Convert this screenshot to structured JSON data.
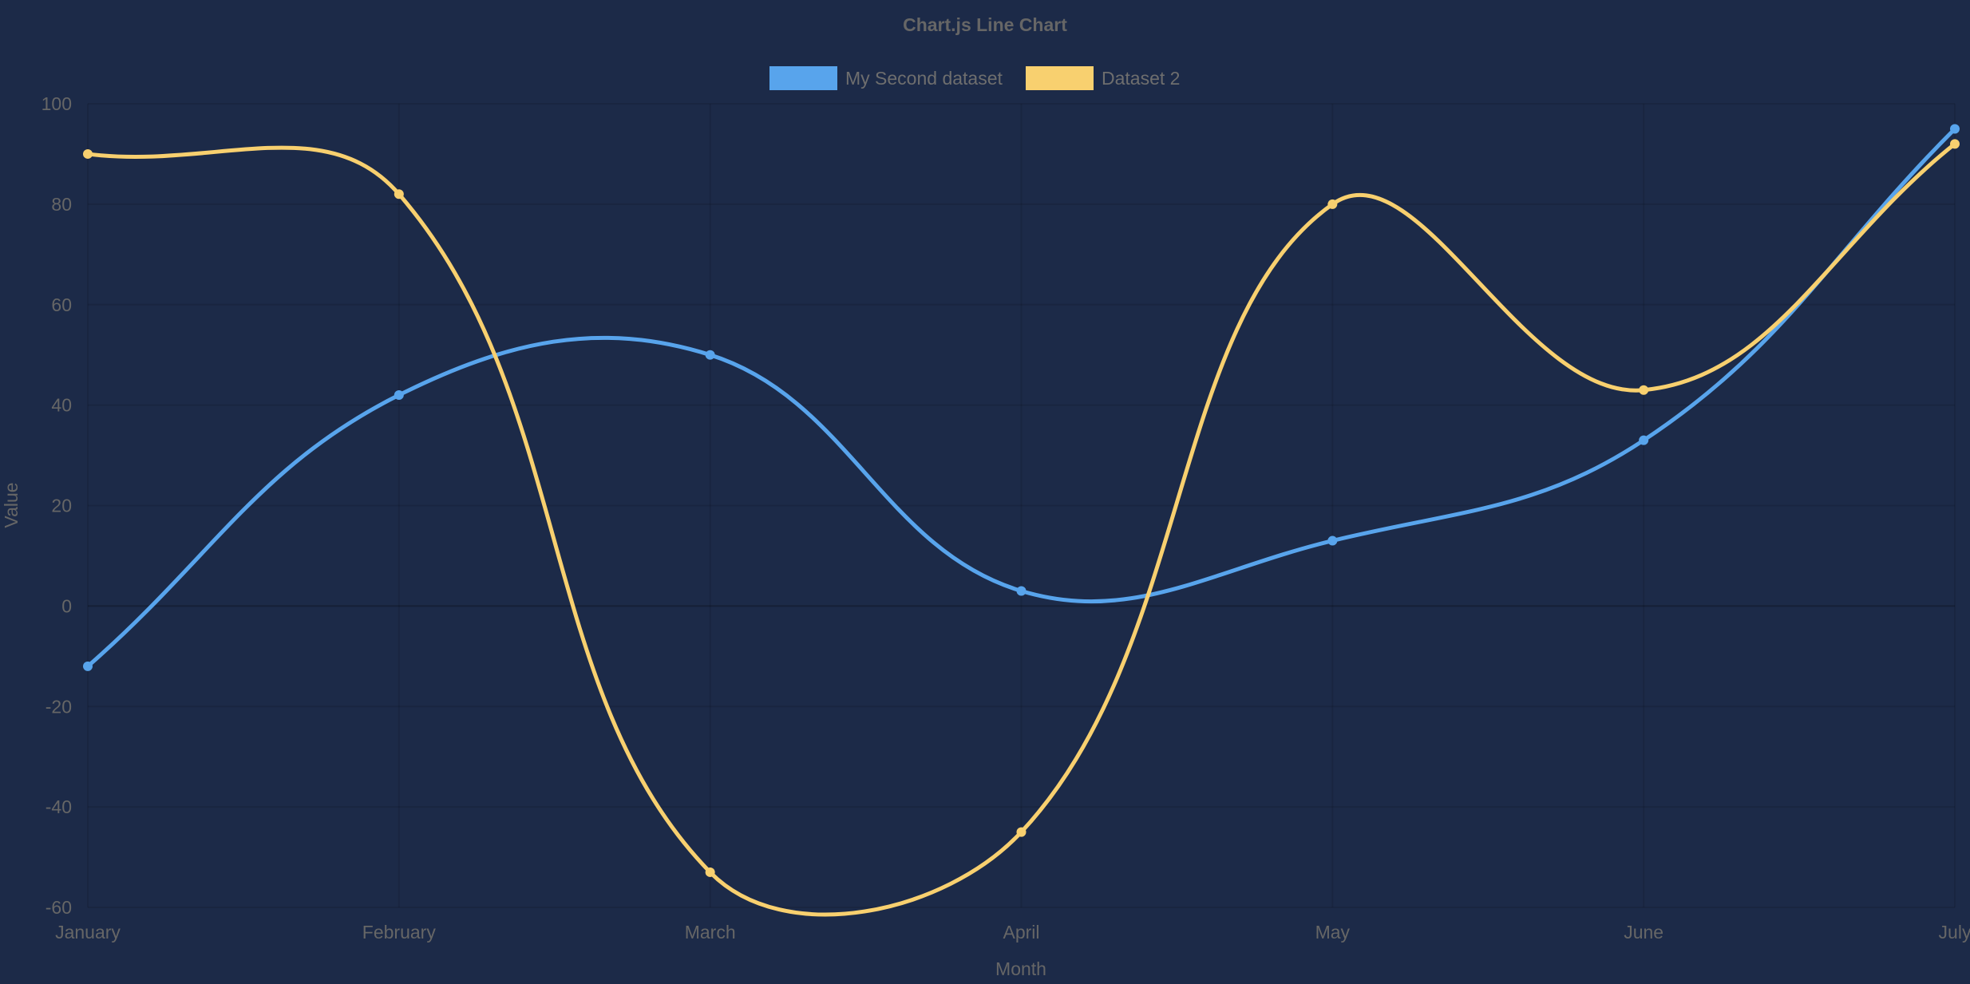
{
  "chart_data": {
    "type": "line",
    "title": "Chart.js Line Chart",
    "xlabel": "Month",
    "ylabel": "Value",
    "categories": [
      "January",
      "February",
      "March",
      "April",
      "May",
      "June",
      "July"
    ],
    "ylim": [
      -60,
      100
    ],
    "yticks": [
      "100",
      "80",
      "60",
      "40",
      "20",
      "0",
      "-20",
      "-40",
      "-60"
    ],
    "grid": true,
    "legend_position": "top",
    "series": [
      {
        "name": "My Second dataset",
        "color": "#58a4ec",
        "values": [
          -12,
          42,
          50,
          3,
          13,
          33,
          95
        ]
      },
      {
        "name": "Dataset 2",
        "color": "#f8d06f",
        "values": [
          90,
          82,
          -53,
          -45,
          80,
          43,
          92
        ]
      }
    ]
  }
}
